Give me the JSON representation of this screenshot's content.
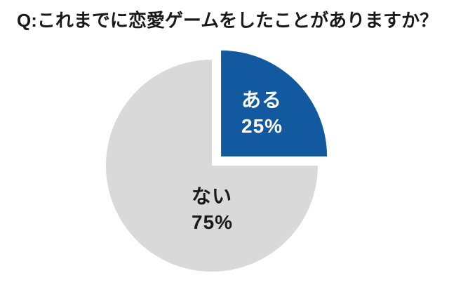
{
  "chart_data": {
    "type": "pie",
    "title": "Q:これまでに恋愛ゲームをしたことがありますか？",
    "labels": [
      "ある",
      "ない"
    ],
    "values": [
      25,
      75
    ],
    "unit": "%",
    "start_angle": "12-oclock",
    "direction": "clockwise",
    "legend": "none (labels drawn on slices)",
    "background_color": "#FFFFFF",
    "slices": [
      {
        "label": "ある",
        "value": 25,
        "display_pct": "25%",
        "color": "#12599F",
        "text_color": "#FFFFFF",
        "exploded": true
      },
      {
        "label": "ない",
        "value": 75,
        "display_pct": "75%",
        "color": "#D9D9D9",
        "text_color": "#1A1A1A",
        "exploded": false
      }
    ]
  }
}
